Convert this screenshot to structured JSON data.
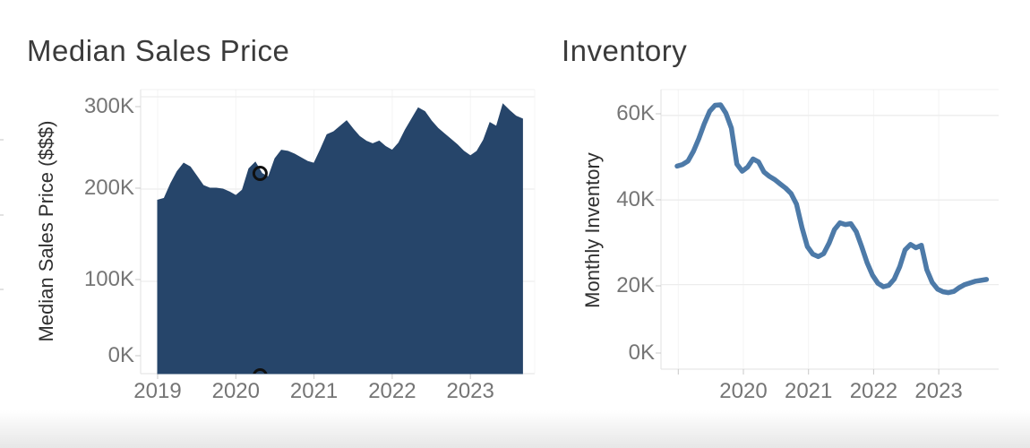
{
  "dashboard": {
    "background": "#ffffff"
  },
  "chart_data": [
    {
      "type": "area",
      "title": "Median Sales Price",
      "ylabel": "Median Sales Price ($$$)",
      "xlabel": "",
      "x_unit": "month",
      "x_start": "2019-01",
      "x_end": "2023-09",
      "x_tick_labels": [
        "2019",
        "2020",
        "2021",
        "2022",
        "2023"
      ],
      "y_tick_labels": [
        "0K",
        "100K",
        "200K",
        "300K"
      ],
      "ylim": [
        0,
        310
      ],
      "grid": true,
      "legend": "none",
      "color": "#26456A",
      "values_k": [
        188,
        190,
        206,
        219,
        228,
        224,
        214,
        204,
        201,
        201,
        200,
        197,
        193,
        199,
        222,
        229,
        217,
        213,
        233,
        242,
        241,
        238,
        234,
        230,
        228,
        243,
        259,
        262,
        268,
        274,
        265,
        257,
        252,
        249,
        252,
        246,
        242,
        250,
        264,
        276,
        288,
        284,
        274,
        266,
        260,
        254,
        248,
        241,
        236,
        241,
        253,
        272,
        268,
        292,
        285,
        279,
        276
      ],
      "annotations": [
        {
          "shape": "open-circle",
          "month": "2020-05",
          "month_index": 16,
          "value_k": 217
        },
        {
          "shape": "open-circle-clipped-at-axis",
          "month": "2020-05",
          "month_index": 16,
          "value_k": 0
        }
      ]
    },
    {
      "type": "line",
      "title": "Inventory",
      "ylabel": "Monthly Inventory",
      "xlabel": "",
      "x_unit": "month",
      "x_start": "2019-01",
      "x_end": "2023-10",
      "x_tick_labels": [
        "",
        "2020",
        "2021",
        "2022",
        "2023"
      ],
      "y_tick_labels": [
        "0K",
        "20K",
        "40K",
        "60K"
      ],
      "ylim": [
        0,
        65
      ],
      "grid": true,
      "legend": "none",
      "color": "#4D7AA8",
      "values_k": [
        48.0,
        48.4,
        49.2,
        51.5,
        54.5,
        58.0,
        61.0,
        62.4,
        62.5,
        60.5,
        57.0,
        48.5,
        46.8,
        47.8,
        49.7,
        49.0,
        46.6,
        45.6,
        44.8,
        43.8,
        42.8,
        41.5,
        39.0,
        33.5,
        29.0,
        27.2,
        26.6,
        27.3,
        29.8,
        33.0,
        34.6,
        34.2,
        34.4,
        32.5,
        29.0,
        25.2,
        22.2,
        20.3,
        19.5,
        19.8,
        21.3,
        24.2,
        28.2,
        29.5,
        28.7,
        29.3,
        23.5,
        20.5,
        18.9,
        18.3,
        18.1,
        18.4,
        19.3,
        20.0,
        20.4,
        20.8,
        21.0,
        21.2
      ]
    }
  ]
}
